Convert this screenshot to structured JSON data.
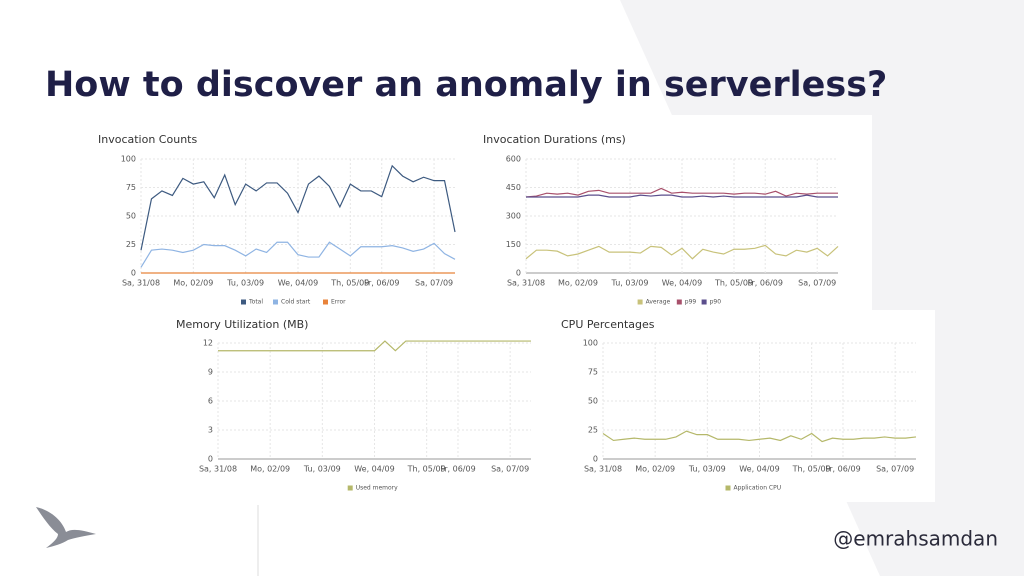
{
  "title": "How to discover an anomaly in serverless?",
  "handle": "@emrahsamdan",
  "chart_data": [
    {
      "type": "line",
      "title": "Invocation Counts",
      "categories": [
        "Sa, 31/08",
        null,
        null,
        null,
        null,
        "Mo, 02/09",
        null,
        null,
        null,
        null,
        "Tu, 03/09",
        null,
        null,
        null,
        null,
        "We, 04/09",
        null,
        null,
        null,
        null,
        "Th, 05/09",
        null,
        null,
        "Fr, 06/09",
        null,
        null,
        null,
        null,
        "Sa, 07/09",
        null,
        null
      ],
      "ylim": [
        0,
        100
      ],
      "yticks": [
        0,
        25,
        50,
        75,
        100
      ],
      "grid": true,
      "legend": "bottom",
      "series": [
        {
          "name": "Total",
          "color": "#3d5a80",
          "values": [
            20,
            65,
            72,
            68,
            83,
            78,
            80,
            66,
            86,
            60,
            78,
            72,
            79,
            79,
            70,
            53,
            78,
            85,
            76,
            58,
            78,
            72,
            72,
            67,
            94,
            85,
            80,
            84,
            81,
            81,
            36
          ]
        },
        {
          "name": "Cold start",
          "color": "#8fb4e3",
          "values": [
            5,
            20,
            21,
            20,
            18,
            20,
            25,
            24,
            24,
            20,
            15,
            21,
            18,
            27,
            27,
            16,
            14,
            14,
            27,
            21,
            15,
            23,
            23,
            23,
            24,
            22,
            19,
            21,
            26,
            17,
            12
          ]
        },
        {
          "name": "Error",
          "color": "#e8833a",
          "values": [
            0,
            0,
            0,
            0,
            0,
            0,
            0,
            0,
            0,
            0,
            0,
            0,
            0,
            0,
            0,
            0,
            0,
            0,
            0,
            0,
            0,
            0,
            0,
            0,
            0,
            0,
            0,
            0,
            0,
            0,
            0
          ]
        }
      ]
    },
    {
      "type": "line",
      "title": "Invocation Durations (ms)",
      "categories": [
        "Sa, 31/08",
        null,
        null,
        null,
        null,
        "Mo, 02/09",
        null,
        null,
        null,
        null,
        "Tu, 03/09",
        null,
        null,
        null,
        null,
        "We, 04/09",
        null,
        null,
        null,
        null,
        "Th, 05/09",
        null,
        null,
        "Fr, 06/09",
        null,
        null,
        null,
        null,
        "Sa, 07/09",
        null,
        null
      ],
      "ylim": [
        0,
        600
      ],
      "yticks": [
        0,
        150,
        300,
        450,
        600
      ],
      "grid": true,
      "legend": "bottom",
      "series": [
        {
          "name": "Average",
          "color": "#c8c27a",
          "values": [
            75,
            120,
            120,
            115,
            90,
            100,
            120,
            140,
            110,
            110,
            110,
            105,
            140,
            135,
            95,
            130,
            75,
            125,
            110,
            100,
            125,
            125,
            130,
            145,
            100,
            90,
            120,
            110,
            130,
            90,
            140
          ]
        },
        {
          "name": "p99",
          "color": "#a8506b",
          "values": [
            400,
            405,
            420,
            415,
            420,
            410,
            430,
            435,
            420,
            420,
            420,
            420,
            420,
            445,
            420,
            425,
            420,
            420,
            420,
            420,
            415,
            420,
            420,
            415,
            430,
            405,
            420,
            415,
            420,
            420,
            420
          ]
        },
        {
          "name": "p90",
          "color": "#5b4e8c",
          "values": [
            400,
            400,
            400,
            400,
            400,
            400,
            410,
            410,
            400,
            400,
            400,
            410,
            405,
            410,
            410,
            400,
            400,
            405,
            400,
            405,
            400,
            400,
            400,
            400,
            400,
            400,
            400,
            410,
            400,
            400,
            400
          ]
        }
      ]
    },
    {
      "type": "line",
      "title": "Memory Utilization (MB)",
      "categories": [
        "Sa, 31/08",
        null,
        null,
        null,
        null,
        "Mo, 02/09",
        null,
        null,
        null,
        null,
        "Tu, 03/09",
        null,
        null,
        null,
        null,
        "We, 04/09",
        null,
        null,
        null,
        null,
        "Th, 05/09",
        null,
        null,
        "Fr, 06/09",
        null,
        null,
        null,
        null,
        "Sa, 07/09",
        null,
        null
      ],
      "ylim": [
        0,
        12
      ],
      "yticks": [
        0,
        3,
        6,
        9,
        12
      ],
      "grid": true,
      "legend": "bottom",
      "series": [
        {
          "name": "Used memory",
          "color": "#b5b86a",
          "values": [
            11.2,
            11.2,
            11.2,
            11.2,
            11.2,
            11.2,
            11.2,
            11.2,
            11.2,
            11.2,
            11.2,
            11.2,
            11.2,
            11.2,
            11.2,
            11.2,
            12.2,
            11.2,
            12.2,
            12.2,
            12.2,
            12.2,
            12.2,
            12.2,
            12.2,
            12.2,
            12.2,
            12.2,
            12.2,
            12.2,
            12.2
          ]
        }
      ]
    },
    {
      "type": "line",
      "title": "CPU Percentages",
      "categories": [
        "Sa, 31/08",
        null,
        null,
        null,
        null,
        "Mo, 02/09",
        null,
        null,
        null,
        null,
        "Tu, 03/09",
        null,
        null,
        null,
        null,
        "We, 04/09",
        null,
        null,
        null,
        null,
        "Th, 05/09",
        null,
        null,
        "Fr, 06/09",
        null,
        null,
        null,
        null,
        "Sa, 07/09",
        null,
        null
      ],
      "ylim": [
        0,
        100
      ],
      "yticks": [
        0,
        25,
        50,
        75,
        100
      ],
      "grid": true,
      "legend": "bottom",
      "series": [
        {
          "name": "Application CPU",
          "color": "#b5b86a",
          "values": [
            22,
            16,
            17,
            18,
            17,
            17,
            17,
            19,
            24,
            21,
            21,
            17,
            17,
            17,
            16,
            17,
            18,
            16,
            20,
            17,
            22,
            15,
            18,
            17,
            17,
            18,
            18,
            19,
            18,
            18,
            19
          ]
        }
      ]
    }
  ]
}
